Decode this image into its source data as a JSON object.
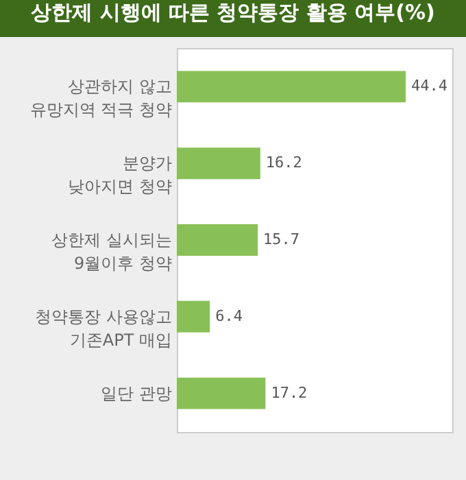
{
  "chart_data": {
    "type": "bar",
    "orientation": "horizontal",
    "title": "상한제 시행에 따른 청약통장 활용 여부(%)",
    "categories": [
      "상관하지 않고\n유망지역 적극 청약",
      "분양가\n낮아지면 청약",
      "상한제 실시되는\n9월이후 청약",
      "청약통장 사용않고\n기존APT 매입",
      "일단 관망"
    ],
    "values": [
      44.4,
      16.2,
      15.7,
      6.4,
      17.2
    ],
    "color": "#88c057",
    "data_labels": true
  }
}
